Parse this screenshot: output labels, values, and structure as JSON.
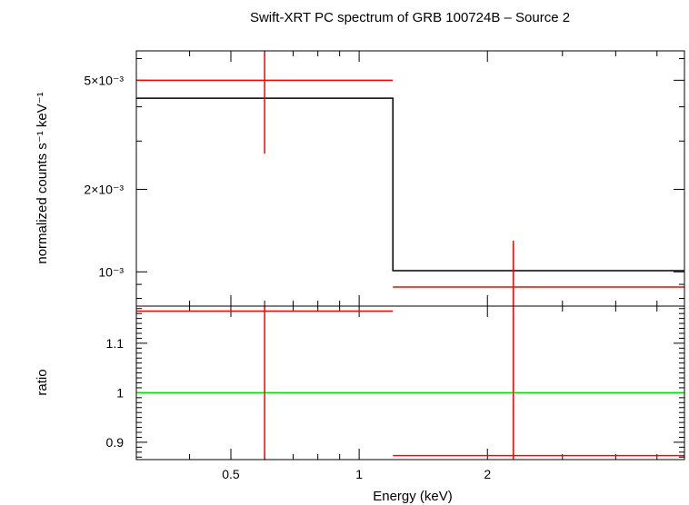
{
  "chart_data": [
    {
      "type": "line",
      "title": "Swift-XRT PC spectrum of GRB 100724B – Source 2",
      "ylabel": "normalized counts s⁻¹ keV⁻¹",
      "xlabel": "",
      "x_scale": "log",
      "y_scale": "log",
      "xlim": [
        0.3,
        5.8
      ],
      "ylim": [
        0.00075,
        0.0064
      ],
      "yticks": [
        {
          "value": 0.005,
          "label": "5×10⁻³"
        },
        {
          "value": 0.002,
          "label": "2×10⁻³"
        },
        {
          "value": 0.001,
          "label": "10⁻³"
        }
      ],
      "data_points": [
        {
          "x": 0.6,
          "x_low": 0.3,
          "x_high": 1.2,
          "y": 0.005,
          "y_low": 0.0027,
          "y_high": 0.0064
        },
        {
          "x": 2.3,
          "x_low": 1.2,
          "x_high": 5.8,
          "y": 0.00088,
          "y_low": 0.00075,
          "y_high": 0.0013
        }
      ],
      "model": [
        {
          "x_low": 0.3,
          "x_high": 1.2,
          "y": 0.0043
        },
        {
          "x_low": 1.2,
          "x_high": 5.8,
          "y": 0.00101
        }
      ],
      "colors": {
        "data": "#ff0000",
        "model": "#000000"
      }
    },
    {
      "type": "line",
      "ylabel": "ratio",
      "xlabel": "Energy (keV)",
      "x_scale": "log",
      "xlim": [
        0.3,
        5.8
      ],
      "ylim": [
        0.865,
        1.175
      ],
      "yticks": [
        {
          "value": 1.1,
          "label": "1.1"
        },
        {
          "value": 1.0,
          "label": "1"
        },
        {
          "value": 0.9,
          "label": "0.9"
        }
      ],
      "xticks": [
        {
          "value": 0.5,
          "label": "0.5"
        },
        {
          "value": 1,
          "label": "1"
        },
        {
          "value": 2,
          "label": "2"
        }
      ],
      "data_points": [
        {
          "x": 0.6,
          "x_low": 0.3,
          "x_high": 1.2,
          "y": 1.165,
          "y_low": 0.865,
          "y_high": 1.175
        },
        {
          "x": 2.3,
          "x_low": 1.2,
          "x_high": 5.8,
          "y": 0.873,
          "y_low": 0.865,
          "y_high": 1.175
        }
      ],
      "reference_line": 1.0,
      "colors": {
        "data": "#ff0000",
        "reference": "#00dd00"
      }
    }
  ]
}
